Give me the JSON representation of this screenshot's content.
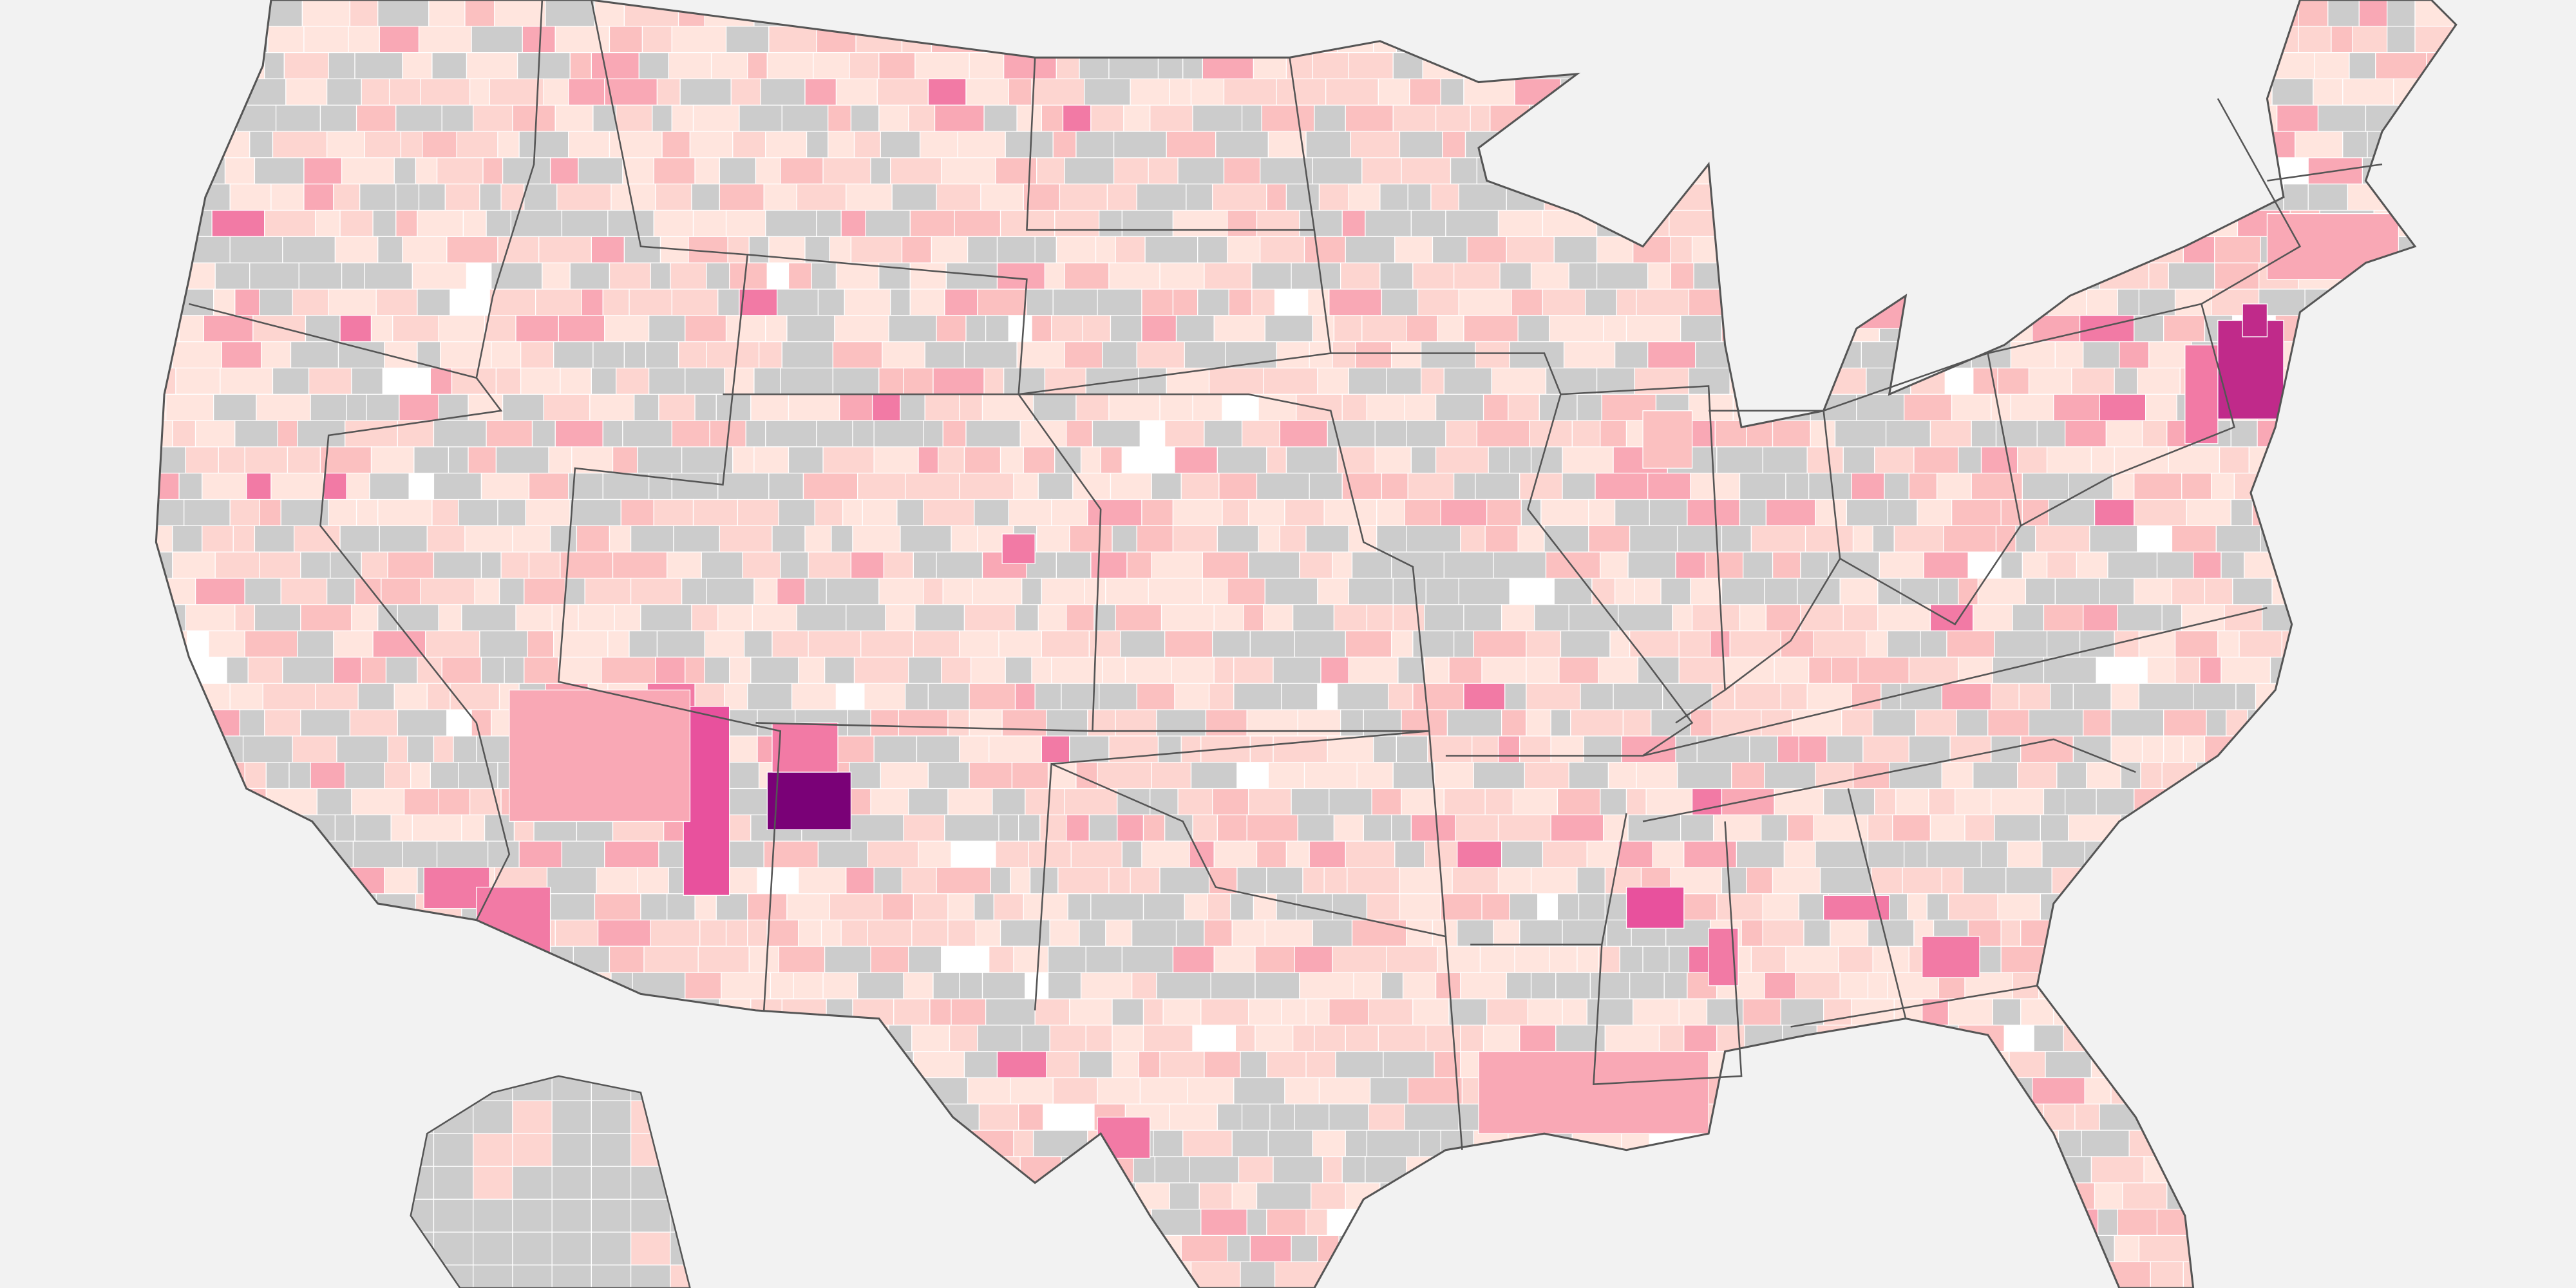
{
  "map": {
    "palette": [
      "#cccccc",
      "#ffe5de",
      "#fdd5d0",
      "#fbc0c0",
      "#f9a8b5",
      "#f27aa5",
      "#e8519d",
      "#c02a8a",
      "#7a0177",
      "#ffffff"
    ]
  }
}
